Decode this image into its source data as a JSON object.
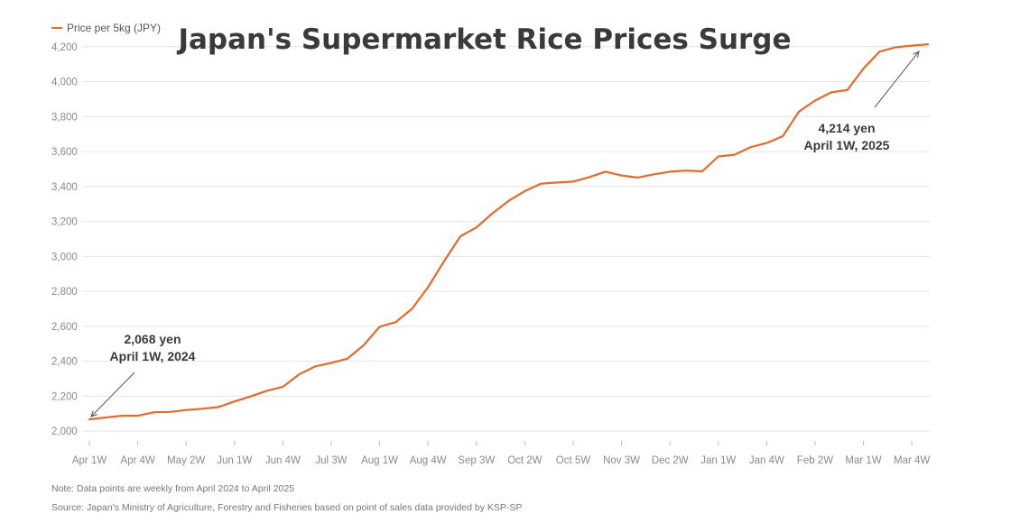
{
  "chart_data": {
    "type": "line",
    "title": "Japan's Supermarket Rice Prices Surge",
    "series": [
      {
        "name": "Price per 5kg (JPY)",
        "color": "#e8692a",
        "values": [
          2068,
          2078,
          2088,
          2088,
          2108,
          2110,
          2121,
          2128,
          2138,
          2170,
          2199,
          2231,
          2254,
          2325,
          2371,
          2391,
          2415,
          2491,
          2598,
          2624,
          2700,
          2824,
          2973,
          3115,
          3166,
          3247,
          3318,
          3374,
          3416,
          3423,
          3428,
          3454,
          3485,
          3463,
          3451,
          3470,
          3485,
          3491,
          3487,
          3572,
          3582,
          3625,
          3649,
          3688,
          3829,
          3892,
          3939,
          3952,
          4075,
          4172,
          4197,
          4206,
          4214
        ]
      }
    ],
    "x_tick_labels": [
      "Apr 1W",
      "Apr 4W",
      "May 2W",
      "Jun 1W",
      "Jun 4W",
      "Jul 3W",
      "Aug 1W",
      "Aug 4W",
      "Sep 3W",
      "Oct 2W",
      "Oct 5W",
      "Nov 3W",
      "Dec 2W",
      "Jan 1W",
      "Jan 4W",
      "Feb 2W",
      "Mar 1W",
      "Mar 4W"
    ],
    "x_tick_index": [
      0,
      3,
      6,
      9,
      12,
      15,
      18,
      21,
      24,
      27,
      30,
      33,
      36,
      39,
      42,
      45,
      48,
      51
    ],
    "y_ticks": [
      2000,
      2200,
      2400,
      2600,
      2800,
      3000,
      3200,
      3400,
      3600,
      3800,
      4000,
      4200
    ],
    "y_tick_labels": [
      "2,000",
      "2,200",
      "2,400",
      "2,600",
      "2,800",
      "3,000",
      "3,200",
      "3,400",
      "3,600",
      "3,800",
      "4,000",
      "4,200"
    ],
    "ylim": [
      1975,
      4235
    ],
    "grid": true,
    "legend_position": "top-left",
    "annotations": [
      {
        "line1": "2,068 yen",
        "line2": "April 1W, 2024",
        "point_index": 0
      },
      {
        "line1": "4,214 yen",
        "line2": "April 1W, 2025",
        "point_index": 52
      }
    ],
    "note": "Note: Data points are weekly from April 2024 to April 2025",
    "source": "Source: Japan's Ministry of Agriculture, Forestry and Fisheries based on point of sales data provided by KSP-SP"
  }
}
